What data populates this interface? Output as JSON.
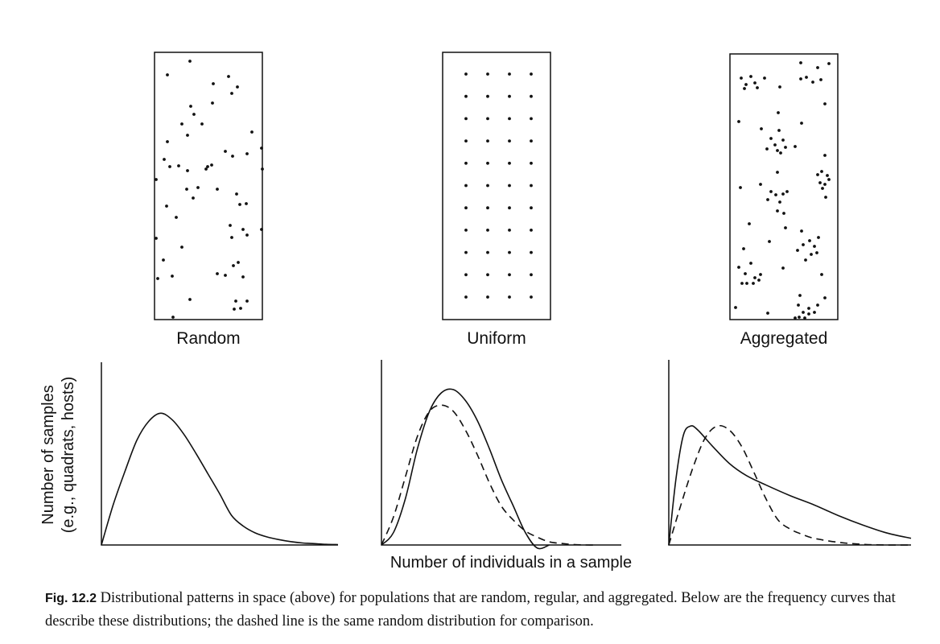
{
  "panels": [
    {
      "label": "Random"
    },
    {
      "label": "Uniform"
    },
    {
      "label": "Aggregated"
    }
  ],
  "axis_labels": {
    "y_line1": "Number of samples",
    "y_line2": "(e.g., quadrats, hosts)",
    "x": "Number of individuals in a sample"
  },
  "caption": {
    "fig_id": "Fig. 12.2",
    "text": "Distributional patterns in space (above) for populations that are random, regular, and aggregated. Below are the frequency curves that describe these distributions; the dashed line is the same random distribution for comparison."
  },
  "chart_data": [
    {
      "type": "line",
      "title": "",
      "series": [
        {
          "style": "solid",
          "x": [
            0,
            0.05,
            0.1,
            0.15,
            0.2,
            0.25,
            0.3,
            0.35,
            0.4,
            0.45,
            0.5,
            0.55,
            0.6,
            0.65,
            0.7,
            0.75,
            0.8,
            0.85,
            0.9,
            0.95,
            1.0
          ],
          "y": [
            0,
            0.3,
            0.55,
            0.78,
            0.92,
            0.98,
            0.93,
            0.82,
            0.68,
            0.53,
            0.38,
            0.22,
            0.14,
            0.09,
            0.06,
            0.04,
            0.025,
            0.015,
            0.01,
            0.005,
            0.003
          ]
        }
      ]
    },
    {
      "type": "line",
      "title": "",
      "series": [
        {
          "style": "solid",
          "x": [
            0,
            0.05,
            0.1,
            0.15,
            0.2,
            0.25,
            0.3,
            0.35,
            0.4,
            0.45,
            0.5,
            0.55,
            0.6,
            0.65,
            0.7
          ],
          "y": [
            0,
            0.08,
            0.3,
            0.62,
            0.86,
            0.98,
            1.0,
            0.93,
            0.8,
            0.62,
            0.42,
            0.25,
            0.08,
            -0.02,
            0.0
          ]
        },
        {
          "style": "dashed",
          "x": [
            0,
            0.05,
            0.1,
            0.15,
            0.2,
            0.25,
            0.3,
            0.35,
            0.4,
            0.45,
            0.5,
            0.55,
            0.6,
            0.65,
            0.7,
            0.75,
            0.8,
            0.85,
            0.9
          ],
          "y": [
            0,
            0.18,
            0.44,
            0.7,
            0.86,
            0.9,
            0.86,
            0.74,
            0.58,
            0.4,
            0.25,
            0.16,
            0.09,
            0.05,
            0.02,
            0.01,
            0.003,
            0.0,
            0.0
          ]
        }
      ]
    },
    {
      "type": "line",
      "title": "",
      "series": [
        {
          "style": "solid",
          "x": [
            0,
            0.03,
            0.06,
            0.09,
            0.12,
            0.18,
            0.25,
            0.32,
            0.4,
            0.5,
            0.6,
            0.7,
            0.8,
            0.9,
            1.0
          ],
          "y": [
            0,
            0.5,
            0.82,
            0.89,
            0.86,
            0.74,
            0.61,
            0.52,
            0.45,
            0.37,
            0.3,
            0.22,
            0.15,
            0.09,
            0.05
          ]
        },
        {
          "style": "dashed",
          "x": [
            0,
            0.05,
            0.1,
            0.15,
            0.2,
            0.25,
            0.3,
            0.35,
            0.4,
            0.45,
            0.5,
            0.55,
            0.6,
            0.7,
            0.8,
            0.9,
            1.0
          ],
          "y": [
            0,
            0.3,
            0.58,
            0.8,
            0.89,
            0.86,
            0.74,
            0.55,
            0.35,
            0.19,
            0.12,
            0.08,
            0.05,
            0.02,
            0.005,
            0.0,
            0.0
          ]
        }
      ]
    }
  ]
}
